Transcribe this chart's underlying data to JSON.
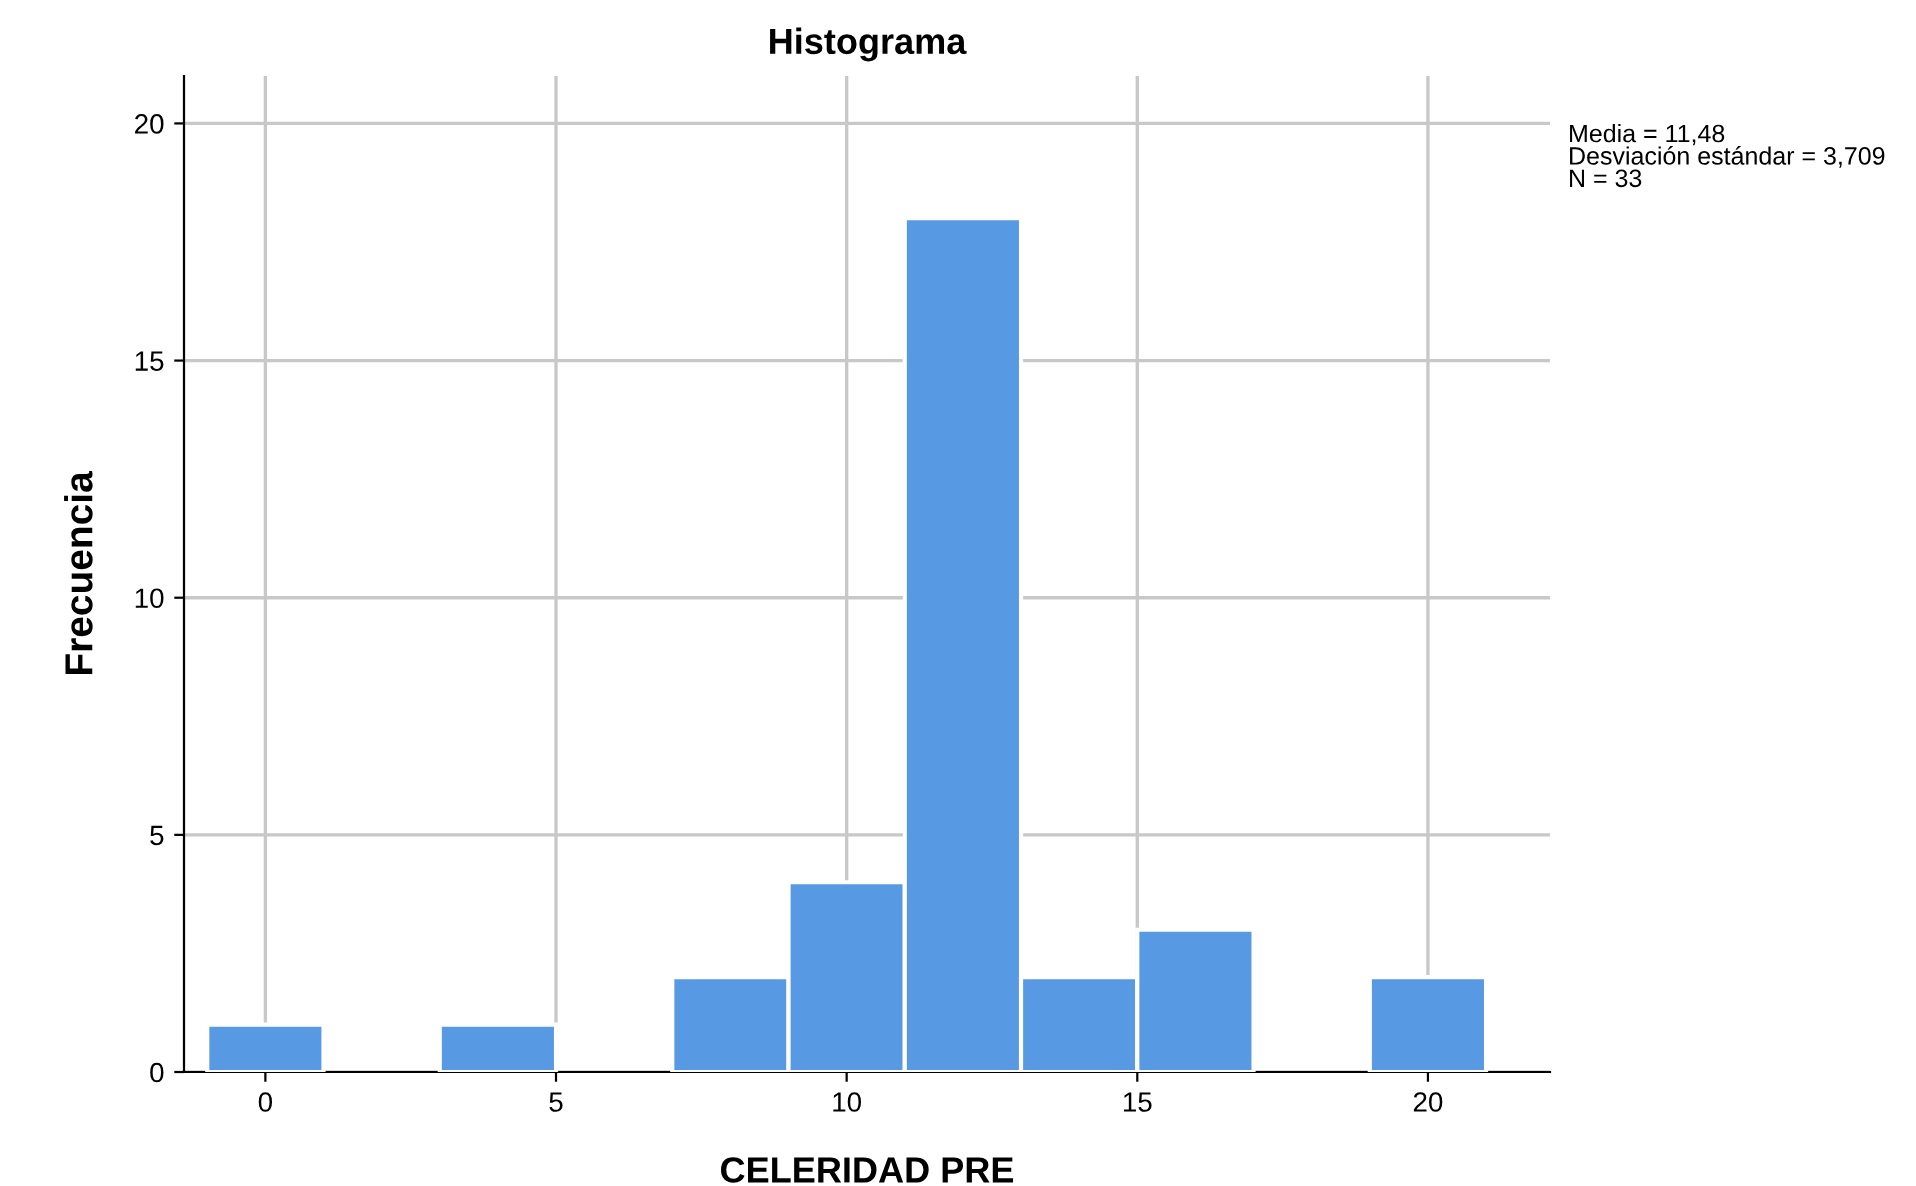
{
  "chart_data": {
    "type": "histogram",
    "title": "Histograma",
    "xlabel": "CELERIDAD PRE",
    "ylabel": "Frecuencia",
    "bins": [
      -1,
      1,
      3,
      5,
      7,
      9,
      11,
      13,
      15,
      17,
      19,
      21
    ],
    "values": [
      1,
      0,
      1,
      0,
      2,
      4,
      18,
      2,
      3,
      0,
      2
    ],
    "color": "#5899e4",
    "xlim": [
      -1.4,
      22.1
    ],
    "ylim": [
      0,
      21
    ],
    "xticks": [
      0,
      5,
      10,
      15,
      20
    ],
    "yticks": [
      0,
      5,
      10,
      15,
      20
    ],
    "grid": true,
    "annotations": [
      "Media = 11,48\nDesviación estándar = 3,709\nN = 33"
    ]
  }
}
